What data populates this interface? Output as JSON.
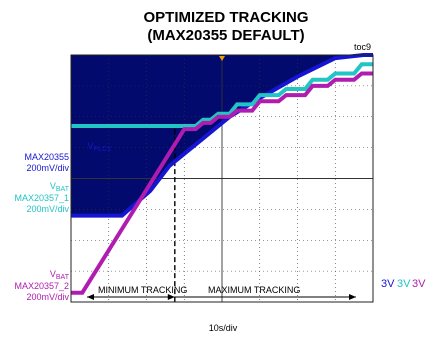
{
  "chart_data": {
    "type": "line",
    "title_line1": "OPTIMIZED TRACKING",
    "title_line2": "(MAX20355 DEFAULT)",
    "tag": "toc9",
    "xlabel": "10s/div",
    "divisions": {
      "x": 8,
      "y": 8
    },
    "grid": true,
    "colors": {
      "vplc": "#1515d2",
      "vplc_fill": "#030a6e",
      "vbat1": "#22c4c4",
      "vbat2": "#b01cb0",
      "grid": "#333333",
      "dash": "#000000",
      "arrow": "#000000",
      "marker": "#f0a000"
    },
    "channels": [
      {
        "name_main": "V",
        "name_sub": "PLC1",
        "device": "MAX20355",
        "scale": "200mV/div",
        "color": "#1515d2",
        "offset": "3V"
      },
      {
        "name_main": "V",
        "name_sub": "BAT",
        "device": "MAX20357_1",
        "scale": "200mV/div",
        "color": "#22c4c4",
        "offset": "3V"
      },
      {
        "name_main": "V",
        "name_sub": "BAT",
        "device": "MAX20357_2",
        "scale": "200mV/div",
        "color": "#b01cb0",
        "offset": "3V"
      }
    ],
    "annotations": {
      "min_tracking": "MINIMUM TRACKING",
      "max_tracking": "MAXIMUM TRACKING",
      "min_tracking_end_div": 2.75
    },
    "series": [
      {
        "name": "VPLC1 MAX20355",
        "points": [
          [
            0,
            2.8
          ],
          [
            1.35,
            2.8
          ],
          [
            2.1,
            3.6
          ],
          [
            2.6,
            4.4
          ],
          [
            3.5,
            5.3
          ],
          [
            4.2,
            6.0
          ],
          [
            5.0,
            6.6
          ],
          [
            6.0,
            7.3
          ],
          [
            7.0,
            7.9
          ],
          [
            7.75,
            8.0
          ],
          [
            8.0,
            8.0
          ]
        ]
      },
      {
        "name": "VBAT MAX20357_1",
        "points": [
          [
            0,
            5.7
          ],
          [
            3.3,
            5.7
          ],
          [
            3.5,
            5.9
          ],
          [
            3.7,
            5.9
          ],
          [
            3.9,
            6.1
          ],
          [
            4.2,
            6.1
          ],
          [
            4.4,
            6.4
          ],
          [
            4.8,
            6.4
          ],
          [
            5.0,
            6.7
          ],
          [
            5.5,
            6.7
          ],
          [
            5.7,
            6.9
          ],
          [
            6.2,
            6.9
          ],
          [
            6.4,
            7.2
          ],
          [
            6.8,
            7.2
          ],
          [
            7.0,
            7.4
          ],
          [
            7.5,
            7.4
          ],
          [
            7.7,
            7.7
          ],
          [
            8.0,
            7.7
          ]
        ]
      },
      {
        "name": "VBAT MAX20357_2",
        "points": [
          [
            0,
            0.3
          ],
          [
            0.3,
            0.3
          ],
          [
            3.0,
            5.6
          ],
          [
            3.3,
            5.6
          ],
          [
            3.5,
            5.8
          ],
          [
            3.7,
            5.8
          ],
          [
            3.9,
            6.0
          ],
          [
            4.2,
            6.0
          ],
          [
            4.4,
            6.2
          ],
          [
            4.8,
            6.2
          ],
          [
            5.0,
            6.5
          ],
          [
            5.5,
            6.5
          ],
          [
            5.7,
            6.7
          ],
          [
            6.2,
            6.7
          ],
          [
            6.4,
            7.0
          ],
          [
            6.8,
            7.0
          ],
          [
            7.0,
            7.2
          ],
          [
            7.5,
            7.2
          ],
          [
            7.7,
            7.4
          ],
          [
            8.0,
            7.4
          ]
        ]
      }
    ]
  }
}
